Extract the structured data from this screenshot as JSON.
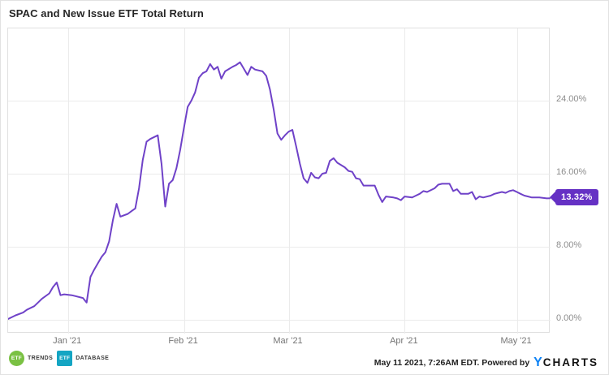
{
  "title": "SPAC and New Issue ETF Total Return",
  "last_value_badge": "13.32%",
  "colors": {
    "line": "#6f42c8",
    "badge_bg": "#6531c4",
    "grid": "#ebebeb",
    "axis_text": "#8c8c8c",
    "plot_border": "#e0e0e0",
    "etf_trends_green": "#7ac143",
    "etf_database_teal": "#14a5c3",
    "ycharts_blue": "#0f83f5"
  },
  "footer": {
    "etf_trends": {
      "icon_text": "ETF",
      "label": "TRENDS"
    },
    "etf_database": {
      "icon_text": "ETF",
      "label": "DATABASE"
    },
    "attribution_prefix": "May 11 2021, 7:26AM EDT. Powered by ",
    "ycharts_y": "Y",
    "ycharts_rest": "CHARTS"
  },
  "chart_data": {
    "type": "line",
    "title": "SPAC and New Issue ETF Total Return",
    "unit": "percent total return",
    "grid": true,
    "legend_position": "none",
    "ylim": [
      -1.5,
      31.9
    ],
    "y_ticks": [
      {
        "value": 0,
        "label": "0.00%"
      },
      {
        "value": 8,
        "label": "8.00%"
      },
      {
        "value": 16,
        "label": "16.00%"
      },
      {
        "value": 24,
        "label": "24.00%"
      }
    ],
    "x_range": [
      "2020-12-16",
      "2021-05-10"
    ],
    "x_ticks": [
      {
        "date": "2021-01-01",
        "label": "Jan '21"
      },
      {
        "date": "2021-02-01",
        "label": "Feb '21"
      },
      {
        "date": "2021-03-01",
        "label": "Mar '21"
      },
      {
        "date": "2021-04-01",
        "label": "Apr '21"
      },
      {
        "date": "2021-05-01",
        "label": "May '21"
      }
    ],
    "last_value": 13.32,
    "points": [
      [
        "2020-12-16",
        0.1
      ],
      [
        "2020-12-18",
        0.5
      ],
      [
        "2020-12-20",
        0.8
      ],
      [
        "2020-12-21",
        1.1
      ],
      [
        "2020-12-23",
        1.5
      ],
      [
        "2020-12-24",
        1.9
      ],
      [
        "2020-12-25",
        2.3
      ],
      [
        "2020-12-27",
        2.9
      ],
      [
        "2020-12-28",
        3.6
      ],
      [
        "2020-12-29",
        4.1
      ],
      [
        "2020-12-30",
        2.7
      ],
      [
        "2020-12-31",
        2.8
      ],
      [
        "2021-01-02",
        2.7
      ],
      [
        "2021-01-03",
        2.6
      ],
      [
        "2021-01-05",
        2.4
      ],
      [
        "2021-01-06",
        1.9
      ],
      [
        "2021-01-07",
        4.7
      ],
      [
        "2021-01-08",
        5.5
      ],
      [
        "2021-01-09",
        6.2
      ],
      [
        "2021-01-10",
        6.9
      ],
      [
        "2021-01-11",
        7.4
      ],
      [
        "2021-01-12",
        8.6
      ],
      [
        "2021-01-13",
        10.9
      ],
      [
        "2021-01-14",
        12.7
      ],
      [
        "2021-01-15",
        11.3
      ],
      [
        "2021-01-17",
        11.6
      ],
      [
        "2021-01-18",
        11.9
      ],
      [
        "2021-01-19",
        12.2
      ],
      [
        "2021-01-20",
        14.4
      ],
      [
        "2021-01-21",
        17.5
      ],
      [
        "2021-01-22",
        19.5
      ],
      [
        "2021-01-23",
        19.8
      ],
      [
        "2021-01-25",
        20.2
      ],
      [
        "2021-01-26",
        17.1
      ],
      [
        "2021-01-27",
        12.4
      ],
      [
        "2021-01-28",
        14.9
      ],
      [
        "2021-01-29",
        15.3
      ],
      [
        "2021-01-30",
        16.6
      ],
      [
        "2021-01-31",
        18.6
      ],
      [
        "2021-02-01",
        21.0
      ],
      [
        "2021-02-02",
        23.3
      ],
      [
        "2021-02-03",
        24.0
      ],
      [
        "2021-02-04",
        24.9
      ],
      [
        "2021-02-05",
        26.5
      ],
      [
        "2021-02-06",
        27.0
      ],
      [
        "2021-02-07",
        27.2
      ],
      [
        "2021-02-08",
        28.0
      ],
      [
        "2021-02-09",
        27.4
      ],
      [
        "2021-02-10",
        27.7
      ],
      [
        "2021-02-11",
        26.4
      ],
      [
        "2021-02-12",
        27.2
      ],
      [
        "2021-02-14",
        27.7
      ],
      [
        "2021-02-15",
        27.9
      ],
      [
        "2021-02-16",
        28.2
      ],
      [
        "2021-02-17",
        27.5
      ],
      [
        "2021-02-18",
        26.8
      ],
      [
        "2021-02-19",
        27.7
      ],
      [
        "2021-02-20",
        27.4
      ],
      [
        "2021-02-22",
        27.2
      ],
      [
        "2021-02-23",
        26.7
      ],
      [
        "2021-02-24",
        25.2
      ],
      [
        "2021-02-25",
        23.0
      ],
      [
        "2021-02-26",
        20.4
      ],
      [
        "2021-02-27",
        19.7
      ],
      [
        "2021-02-28",
        20.2
      ],
      [
        "2021-03-01",
        20.6
      ],
      [
        "2021-03-02",
        20.8
      ],
      [
        "2021-03-03",
        19.0
      ],
      [
        "2021-03-04",
        17.1
      ],
      [
        "2021-03-05",
        15.5
      ],
      [
        "2021-03-06",
        15.0
      ],
      [
        "2021-03-07",
        16.1
      ],
      [
        "2021-03-08",
        15.6
      ],
      [
        "2021-03-09",
        15.5
      ],
      [
        "2021-03-10",
        16.0
      ],
      [
        "2021-03-11",
        16.1
      ],
      [
        "2021-03-12",
        17.4
      ],
      [
        "2021-03-13",
        17.7
      ],
      [
        "2021-03-14",
        17.2
      ],
      [
        "2021-03-16",
        16.7
      ],
      [
        "2021-03-17",
        16.3
      ],
      [
        "2021-03-18",
        16.2
      ],
      [
        "2021-03-19",
        15.5
      ],
      [
        "2021-03-20",
        15.4
      ],
      [
        "2021-03-21",
        14.7
      ],
      [
        "2021-03-22",
        14.7
      ],
      [
        "2021-03-24",
        14.7
      ],
      [
        "2021-03-25",
        13.7
      ],
      [
        "2021-03-26",
        12.9
      ],
      [
        "2021-03-27",
        13.5
      ],
      [
        "2021-03-29",
        13.4
      ],
      [
        "2021-03-30",
        13.3
      ],
      [
        "2021-03-31",
        13.1
      ],
      [
        "2021-04-01",
        13.5
      ],
      [
        "2021-04-03",
        13.4
      ],
      [
        "2021-04-04",
        13.6
      ],
      [
        "2021-04-05",
        13.8
      ],
      [
        "2021-04-06",
        14.1
      ],
      [
        "2021-04-07",
        14.0
      ],
      [
        "2021-04-09",
        14.4
      ],
      [
        "2021-04-10",
        14.8
      ],
      [
        "2021-04-11",
        14.9
      ],
      [
        "2021-04-13",
        14.9
      ],
      [
        "2021-04-14",
        14.1
      ],
      [
        "2021-04-15",
        14.3
      ],
      [
        "2021-04-16",
        13.8
      ],
      [
        "2021-04-18",
        13.8
      ],
      [
        "2021-04-19",
        14.0
      ],
      [
        "2021-04-20",
        13.2
      ],
      [
        "2021-04-21",
        13.5
      ],
      [
        "2021-04-22",
        13.4
      ],
      [
        "2021-04-24",
        13.6
      ],
      [
        "2021-04-25",
        13.8
      ],
      [
        "2021-04-26",
        13.9
      ],
      [
        "2021-04-27",
        14.0
      ],
      [
        "2021-04-28",
        13.9
      ],
      [
        "2021-04-29",
        14.1
      ],
      [
        "2021-04-30",
        14.2
      ],
      [
        "2021-05-01",
        14.0
      ],
      [
        "2021-05-02",
        13.8
      ],
      [
        "2021-05-03",
        13.6
      ],
      [
        "2021-05-04",
        13.5
      ],
      [
        "2021-05-05",
        13.4
      ],
      [
        "2021-05-07",
        13.4
      ],
      [
        "2021-05-09",
        13.3
      ],
      [
        "2021-05-10",
        13.32
      ]
    ]
  }
}
